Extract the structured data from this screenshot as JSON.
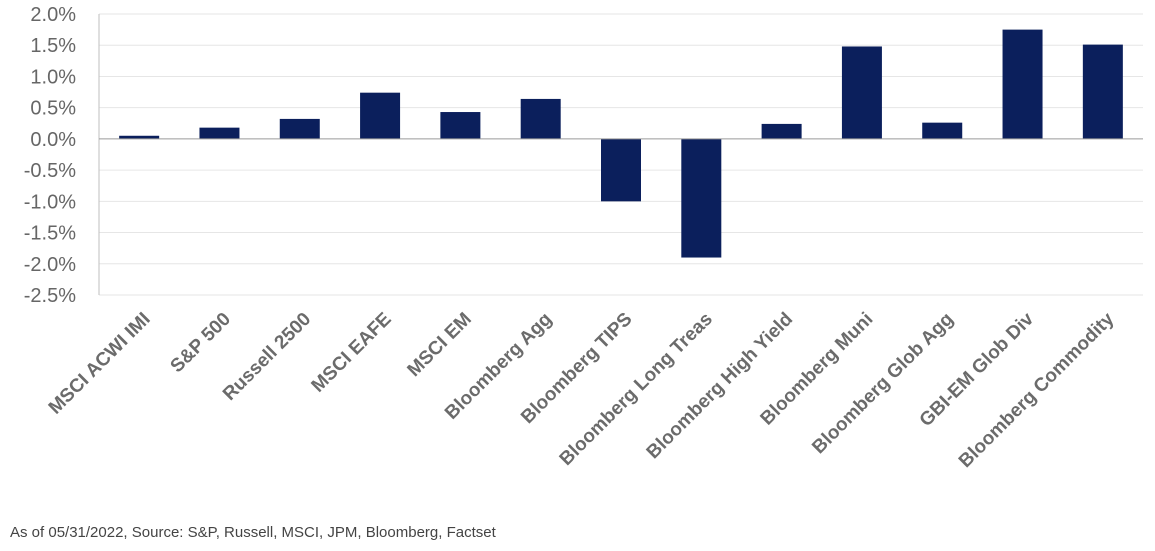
{
  "chart_data": {
    "type": "bar",
    "categories": [
      "MSCI ACWI IMI",
      "S&P 500",
      "Russell 2500",
      "MSCI EAFE",
      "MSCI EM",
      "Bloomberg Agg",
      "Bloomberg TIPS",
      "Bloomberg Long Treas",
      "Bloomberg High Yield",
      "Bloomberg Muni",
      "Bloomberg Glob Agg",
      "GBI-EM Glob Div",
      "Bloomberg Commodity"
    ],
    "values": [
      0.05,
      0.18,
      0.32,
      0.74,
      0.43,
      0.64,
      -1.0,
      -1.9,
      0.24,
      1.48,
      0.26,
      1.75,
      1.51
    ],
    "ylim": [
      -2.5,
      2.0
    ],
    "yticks": [
      2.0,
      1.5,
      1.0,
      0.5,
      0.0,
      -0.5,
      -1.0,
      -1.5,
      -2.0,
      -2.5
    ],
    "ytick_labels": [
      "2.0%",
      "1.5%",
      "1.0%",
      "0.5%",
      "0.0%",
      "-0.5%",
      "-1.0%",
      "-1.5%",
      "-2.0%",
      "-2.5%"
    ],
    "grid": true,
    "title": "",
    "xlabel": "",
    "ylabel": "",
    "bar_color": "#0b1f5c"
  },
  "footer": {
    "source_text": "As of 05/31/2022, Source: S&P, Russell, MSCI, JPM, Bloomberg, Factset"
  }
}
